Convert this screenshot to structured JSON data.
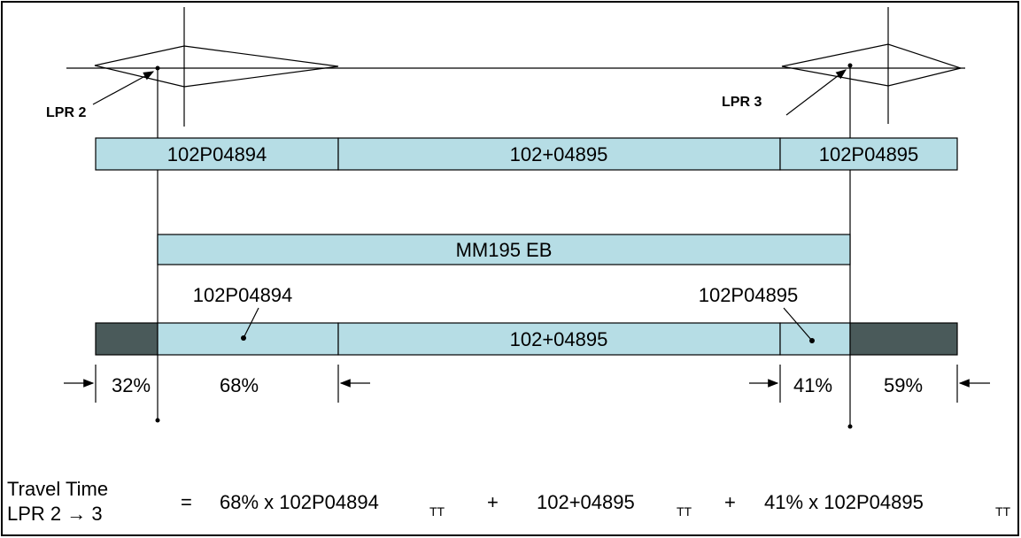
{
  "markers": {
    "left": "LPR 2",
    "right": "LPR 3"
  },
  "links_top": [
    "102P04894",
    "102+04895",
    "102P04895"
  ],
  "route": "MM195 EB",
  "links_bottom": {
    "left_label": "102P04894",
    "middle": "102+04895",
    "right_label": "102P04895"
  },
  "shares": [
    "32%",
    "68%",
    "41%",
    "59%"
  ],
  "formula": {
    "label_line1": "Travel Time",
    "label_line2": "LPR 2 → 3",
    "equals": "=",
    "term1": "68% x 102P04894",
    "sub1": "TT",
    "plus1": "+",
    "term2": "102+04895",
    "sub2": "TT",
    "plus2": "+",
    "term3": "41% x 102P04895",
    "sub3": "TT"
  }
}
